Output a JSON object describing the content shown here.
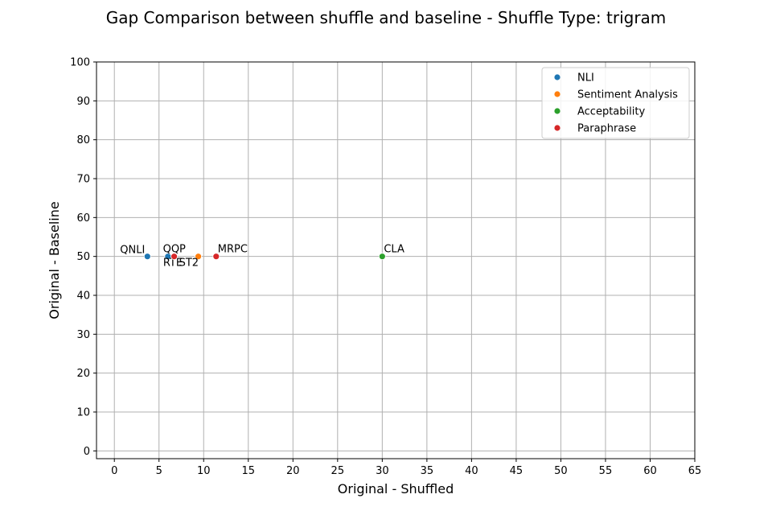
{
  "chart_data": {
    "type": "scatter",
    "title": "Gap Comparison between shuffle and baseline - Shuffle Type: trigram",
    "xlabel": "Original - Shuffled",
    "ylabel": "Original - Baseline",
    "xlim": [
      -2,
      65
    ],
    "ylim": [
      -2,
      100
    ],
    "xticks": [
      0,
      5,
      10,
      15,
      20,
      25,
      30,
      35,
      40,
      45,
      50,
      55,
      60,
      65
    ],
    "yticks": [
      0,
      10,
      20,
      30,
      40,
      50,
      60,
      70,
      80,
      90,
      100
    ],
    "grid": true,
    "legend_position": "top-right",
    "categories": [
      {
        "name": "NLI",
        "color": "#1f77b4"
      },
      {
        "name": "Sentiment Analysis",
        "color": "#ff7f0e"
      },
      {
        "name": "Acceptability",
        "color": "#2ca02c"
      },
      {
        "name": "Paraphrase",
        "color": "#d62728"
      }
    ],
    "points": [
      {
        "label": "QNLI",
        "category": "NLI",
        "x": 3.7,
        "y": 50
      },
      {
        "label": "RTE",
        "category": "NLI",
        "x": 6.0,
        "y": 50
      },
      {
        "label": "QQP",
        "category": "Paraphrase",
        "x": 6.7,
        "y": 50
      },
      {
        "label": "ST2",
        "category": "Sentiment Analysis",
        "x": 9.4,
        "y": 50
      },
      {
        "label": "MRPC",
        "category": "Paraphrase",
        "x": 11.4,
        "y": 50
      },
      {
        "label": "CLA",
        "category": "Acceptability",
        "x": 30.0,
        "y": 50
      }
    ]
  }
}
